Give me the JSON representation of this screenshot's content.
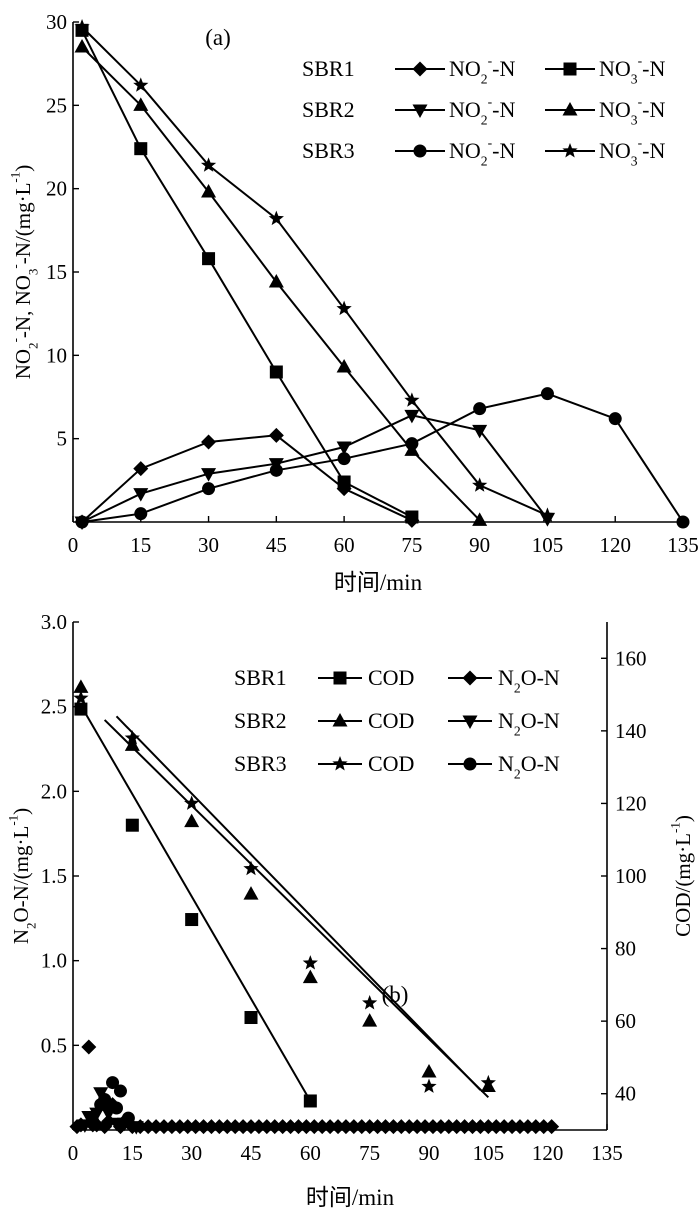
{
  "chart_data": [
    {
      "type": "line",
      "panel_label": "(a)",
      "xlabel": "时间/min",
      "ylabel_parts": [
        "NO",
        "2",
        "-",
        "-N, NO",
        "3",
        "-",
        "-N/(mg·L",
        "-1",
        ")"
      ],
      "xlim": [
        0,
        135
      ],
      "ylim": [
        0,
        30
      ],
      "xticks": [
        0,
        15,
        30,
        45,
        60,
        75,
        90,
        105,
        120,
        135
      ],
      "yticks": [
        5,
        10,
        15,
        20,
        25,
        30
      ],
      "legend": {
        "position": "top-right",
        "rows": [
          {
            "label": "SBR1",
            "entries": [
              {
                "marker": "diamond",
                "main": "NO",
                "sub": "2",
                "sup": "-",
                "rest": "-N"
              },
              {
                "marker": "square",
                "main": "NO",
                "sub": "3",
                "sup": "-",
                "rest": "-N"
              }
            ]
          },
          {
            "label": "SBR2",
            "entries": [
              {
                "marker": "tri-down",
                "main": "NO",
                "sub": "2",
                "sup": "-",
                "rest": "-N"
              },
              {
                "marker": "tri-up",
                "main": "NO",
                "sub": "3",
                "sup": "-",
                "rest": "-N"
              }
            ]
          },
          {
            "label": "SBR3",
            "entries": [
              {
                "marker": "circle",
                "main": "NO",
                "sub": "2",
                "sup": "-",
                "rest": "-N"
              },
              {
                "marker": "star",
                "main": "NO",
                "sub": "3",
                "sup": "-",
                "rest": "-N"
              }
            ]
          }
        ]
      },
      "series": [
        {
          "id": "sbr1-no2",
          "marker": "diamond",
          "x": [
            2,
            15,
            30,
            45,
            60,
            75
          ],
          "y": [
            0,
            3.2,
            4.8,
            5.2,
            2.0,
            0.1
          ]
        },
        {
          "id": "sbr1-no3",
          "marker": "square",
          "x": [
            2,
            15,
            30,
            45,
            60,
            75
          ],
          "y": [
            29.5,
            22.4,
            15.8,
            9.0,
            2.4,
            0.3
          ]
        },
        {
          "id": "sbr2-no2",
          "marker": "tri-down",
          "x": [
            2,
            15,
            30,
            45,
            60,
            75,
            90,
            105
          ],
          "y": [
            0,
            1.7,
            2.9,
            3.5,
            4.5,
            6.4,
            5.5,
            0.2
          ]
        },
        {
          "id": "sbr2-no3",
          "marker": "tri-up",
          "x": [
            2,
            15,
            30,
            45,
            60,
            75,
            90
          ],
          "y": [
            28.5,
            25.0,
            19.8,
            14.4,
            9.3,
            4.3,
            0.1
          ]
        },
        {
          "id": "sbr3-no2",
          "marker": "circle",
          "x": [
            2,
            15,
            30,
            45,
            60,
            75,
            90,
            105,
            120,
            135
          ],
          "y": [
            0,
            0.5,
            2.0,
            3.1,
            3.8,
            4.7,
            6.8,
            7.7,
            6.2,
            0
          ]
        },
        {
          "id": "sbr3-no3",
          "marker": "star",
          "x": [
            2,
            15,
            30,
            45,
            60,
            75,
            90,
            105
          ],
          "y": [
            29.7,
            26.2,
            21.4,
            18.2,
            12.8,
            7.3,
            2.2,
            0.4
          ]
        }
      ]
    },
    {
      "type": "scatter",
      "panel_label": "(b)",
      "xlabel": "时间/min",
      "ylabel_left_parts": [
        "N",
        "2",
        "O-N/(mg·L",
        "-1",
        ")"
      ],
      "ylabel_right_parts": [
        "COD/(mg·L",
        "-1",
        ")"
      ],
      "xlim": [
        0,
        135
      ],
      "ylim_left": [
        0,
        3.0
      ],
      "ylim_right": [
        30,
        170
      ],
      "xticks": [
        0,
        15,
        30,
        45,
        60,
        75,
        90,
        105,
        120,
        135
      ],
      "yticks_left": [
        0.5,
        1.0,
        1.5,
        2.0,
        2.5,
        3.0
      ],
      "yticks_left_labels": [
        "0.5",
        "1.0",
        "1.5",
        "2.0",
        "2.5",
        "3.0"
      ],
      "yticks_right": [
        40,
        60,
        80,
        100,
        120,
        140,
        160
      ],
      "legend": {
        "position": "top-right",
        "rows": [
          {
            "label": "SBR1",
            "entries": [
              {
                "marker": "square",
                "text": "COD"
              },
              {
                "marker": "diamond",
                "main": "N",
                "sub": "2",
                "rest": "O-N"
              }
            ]
          },
          {
            "label": "SBR2",
            "entries": [
              {
                "marker": "tri-up",
                "text": "COD"
              },
              {
                "marker": "tri-down",
                "main": "N",
                "sub": "2",
                "rest": "O-N"
              }
            ]
          },
          {
            "label": "SBR3",
            "entries": [
              {
                "marker": "star",
                "text": "COD"
              },
              {
                "marker": "circle",
                "main": "N",
                "sub": "2",
                "rest": "O-N"
              }
            ]
          }
        ]
      },
      "series": [
        {
          "id": "sbr1-cod",
          "axis": "right",
          "marker": "square",
          "x": [
            2,
            15,
            30,
            45,
            60
          ],
          "y": [
            146,
            114,
            88,
            61,
            38
          ],
          "fit": {
            "x": [
              2,
              60
            ],
            "y": [
              147,
              38
            ]
          }
        },
        {
          "id": "sbr2-cod",
          "axis": "right",
          "marker": "tri-up",
          "x": [
            2,
            15,
            30,
            45,
            60,
            75,
            90,
            105
          ],
          "y": [
            152,
            136,
            115,
            95,
            72,
            60,
            46,
            42
          ],
          "fit": {
            "x": [
              8,
              105
            ],
            "y": [
              143,
              39
            ]
          }
        },
        {
          "id": "sbr3-cod",
          "axis": "right",
          "marker": "star",
          "x": [
            2,
            15,
            30,
            45,
            60,
            75,
            90,
            105
          ],
          "y": [
            149,
            138,
            120,
            102,
            76,
            65,
            42,
            43
          ],
          "fit": {
            "x": [
              11,
              103
            ],
            "y": [
              144,
              41
            ]
          }
        },
        {
          "id": "sbr1-n2o",
          "axis": "left",
          "marker": "diamond",
          "x": [
            1,
            2,
            4,
            5,
            6,
            8,
            9,
            10,
            12,
            13,
            15,
            17,
            19,
            21,
            23,
            25,
            27,
            29,
            31,
            33,
            35,
            37,
            39,
            41,
            43,
            45,
            47,
            49,
            51,
            53,
            55,
            57,
            59,
            61,
            63,
            65,
            67,
            69,
            71,
            73,
            75,
            77,
            79,
            81,
            83,
            85,
            87,
            89,
            91,
            93,
            95,
            97,
            99,
            101,
            103,
            105,
            107,
            109,
            111,
            113,
            115,
            117,
            119,
            121
          ],
          "y": [
            0.02,
            0.03,
            0.49,
            0.03,
            0.03,
            0.02,
            0.05,
            0.15,
            0.02,
            0.05,
            0.02,
            0.02,
            0.02,
            0.02,
            0.02,
            0.02,
            0.02,
            0.02,
            0.02,
            0.02,
            0.02,
            0.02,
            0.02,
            0.02,
            0.02,
            0.02,
            0.02,
            0.02,
            0.02,
            0.02,
            0.02,
            0.02,
            0.02,
            0.02,
            0.02,
            0.02,
            0.02,
            0.02,
            0.02,
            0.02,
            0.02,
            0.02,
            0.02,
            0.02,
            0.02,
            0.02,
            0.02,
            0.02,
            0.02,
            0.02,
            0.02,
            0.02,
            0.02,
            0.02,
            0.02,
            0.02,
            0.02,
            0.02,
            0.02,
            0.02,
            0.02,
            0.02,
            0.02,
            0.02
          ]
        },
        {
          "id": "sbr2-n2o",
          "axis": "left",
          "marker": "tri-down",
          "x": [
            3,
            4,
            6,
            7,
            9,
            11,
            13,
            16
          ],
          "y": [
            0.03,
            0.08,
            0.1,
            0.22,
            0.1,
            0.04,
            0.04,
            0.02
          ]
        },
        {
          "id": "sbr3-n2o",
          "axis": "left",
          "marker": "circle",
          "x": [
            5,
            7,
            8,
            9,
            10,
            11,
            12,
            14
          ],
          "y": [
            0.05,
            0.15,
            0.18,
            0.15,
            0.28,
            0.13,
            0.23,
            0.07
          ]
        }
      ]
    }
  ]
}
